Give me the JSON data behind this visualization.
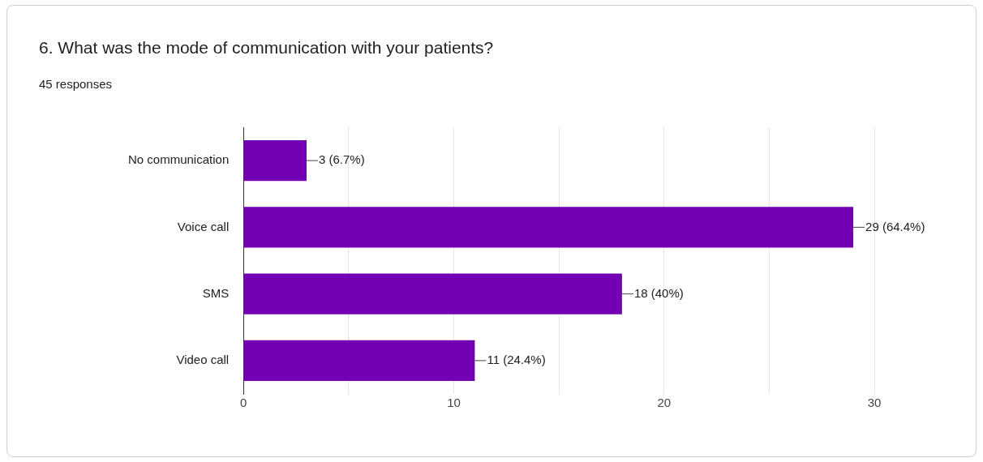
{
  "chart_data": {
    "type": "bar",
    "orientation": "horizontal",
    "title": "6. What was the mode of communication with your patients?",
    "subtitle": "45 responses",
    "categories": [
      "No communication",
      "Voice call",
      "SMS",
      "Video call"
    ],
    "values": [
      3,
      29,
      18,
      11
    ],
    "value_labels": [
      "3 (6.7%)",
      "29 (64.4%)",
      "18 (40%)",
      "11 (24.4%)"
    ],
    "color": "#7300b5",
    "xlim": [
      0,
      30
    ],
    "xticks": [
      0,
      {
        "value": 5,
        "label": null
      },
      10,
      {
        "value": 15,
        "label": null
      },
      20,
      {
        "value": 25,
        "label": null
      },
      30
    ],
    "grid": "x",
    "legend": false
  }
}
